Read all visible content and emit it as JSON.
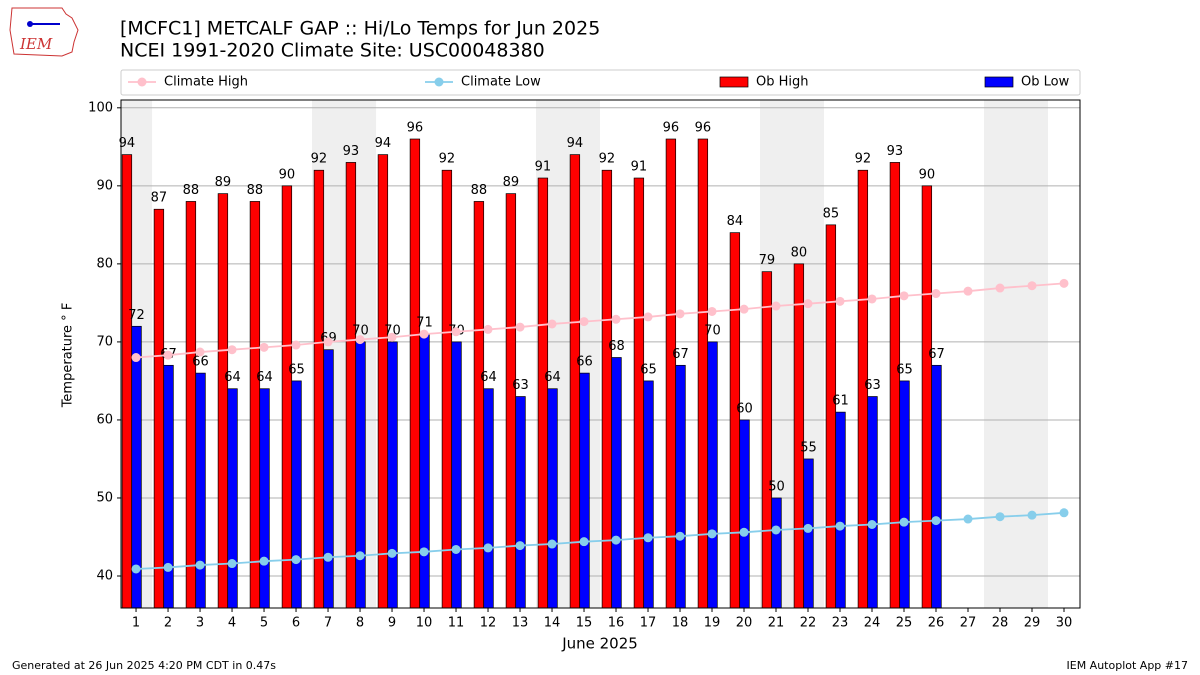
{
  "chart_data": {
    "type": "bar",
    "title": "[MCFC1] METCALF GAP :: Hi/Lo Temps for Jun 2025",
    "subtitle": "NCEI 1991-2020 Climate Site: USC00048380",
    "x_label": "June 2025",
    "y_label": "Temperature $^\\circ$F",
    "footer_left": "Generated at 26 Jun 2025 4:20 PM CDT in 0.47s",
    "footer_right": "IEM Autoplot App #17",
    "logo": "IEM",
    "categories": [
      1,
      2,
      3,
      4,
      5,
      6,
      7,
      8,
      9,
      10,
      11,
      12,
      13,
      14,
      15,
      16,
      17,
      18,
      19,
      20,
      21,
      22,
      23,
      24,
      25,
      26,
      27,
      28,
      29,
      30
    ],
    "series": [
      {
        "name": "Climate High",
        "type": "line",
        "color": "#ffc0cb",
        "values": [
          68.0,
          68.3,
          68.7,
          69.0,
          69.3,
          69.6,
          70.0,
          70.3,
          70.6,
          71.0,
          71.3,
          71.6,
          71.9,
          72.3,
          72.6,
          72.9,
          73.2,
          73.6,
          73.9,
          74.2,
          74.6,
          74.9,
          75.2,
          75.5,
          75.9,
          76.2,
          76.5,
          76.9,
          77.2,
          77.5
        ]
      },
      {
        "name": "Climate Low",
        "type": "line",
        "color": "#87ceeb",
        "values": [
          40.9,
          41.1,
          41.4,
          41.6,
          41.9,
          42.1,
          42.4,
          42.6,
          42.9,
          43.1,
          43.4,
          43.6,
          43.9,
          44.1,
          44.4,
          44.6,
          44.9,
          45.1,
          45.4,
          45.6,
          45.9,
          46.1,
          46.4,
          46.6,
          46.9,
          47.1,
          47.3,
          47.6,
          47.8,
          48.1
        ]
      },
      {
        "name": "Ob High",
        "type": "bar",
        "color": "#ff0000",
        "values": [
          94,
          87,
          88,
          89,
          88,
          90,
          92,
          93,
          94,
          96,
          92,
          88,
          89,
          91,
          94,
          92,
          91,
          96,
          96,
          84,
          79,
          80,
          85,
          92,
          93,
          90,
          null,
          null,
          null,
          null
        ]
      },
      {
        "name": "Ob Low",
        "type": "bar",
        "color": "#0000ff",
        "values": [
          72,
          67,
          66,
          64,
          64,
          65,
          69,
          70,
          70,
          71,
          70,
          64,
          63,
          64,
          66,
          68,
          65,
          67,
          70,
          60,
          50,
          55,
          61,
          63,
          65,
          67,
          null,
          null,
          null,
          null
        ]
      }
    ],
    "xlim": [
      0.53,
      30.5
    ],
    "ylim": [
      35.9,
      101.0
    ],
    "yticks": [
      40,
      50,
      60,
      70,
      80,
      90,
      100
    ],
    "grid": true,
    "legend": "top"
  }
}
